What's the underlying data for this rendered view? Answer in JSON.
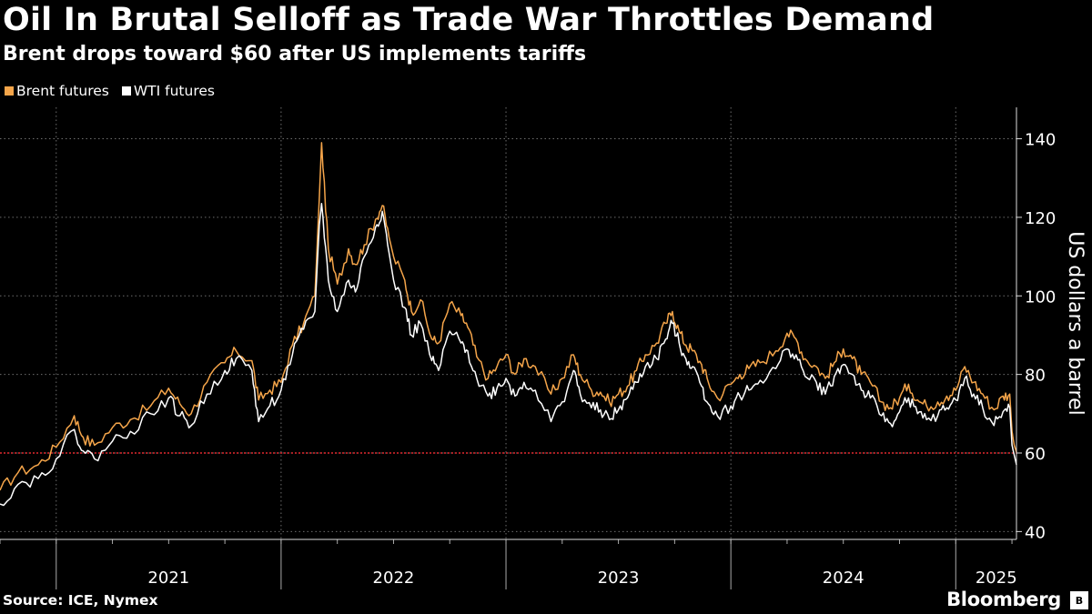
{
  "header": {
    "title": "Oil In Brutal Selloff as Trade War Throttles Demand",
    "subtitle": "Brent drops toward $60 after US implements tariffs"
  },
  "colors": {
    "brent": "#f5a54a",
    "wti": "#ffffff",
    "reference_line": "#e0282e",
    "grid": "#6e6e6e",
    "background": "#000000"
  },
  "chart_data": {
    "type": "line",
    "title": "Oil In Brutal Selloff as Trade War Throttles Demand",
    "subtitle": "Brent drops toward $60 after US implements tariffs",
    "ylabel": "US dollars a barrel",
    "xlabel": "",
    "ylim": [
      38,
      148
    ],
    "yticks": [
      40,
      60,
      80,
      100,
      120,
      140
    ],
    "xlim": [
      2020.75,
      2025.27
    ],
    "x_labels": [
      {
        "label": "2021",
        "pos": 2021.5
      },
      {
        "label": "2022",
        "pos": 2022.5
      },
      {
        "label": "2023",
        "pos": 2023.5
      },
      {
        "label": "2024",
        "pos": 2024.5
      },
      {
        "label": "2025",
        "pos": 2025.18
      }
    ],
    "year_dividers": [
      2021.0,
      2022.0,
      2023.0,
      2024.0,
      2025.0
    ],
    "reference_line": {
      "value": 60,
      "label": "$60"
    },
    "legend": [
      "Brent futures",
      "WTI futures"
    ],
    "legend_position": "top-left",
    "series": [
      {
        "name": "Brent futures",
        "points": [
          [
            2020.75,
            50.5
          ],
          [
            2020.83,
            55.0
          ],
          [
            2020.92,
            57.0
          ],
          [
            2021.0,
            61.5
          ],
          [
            2021.08,
            69.5
          ],
          [
            2021.12,
            64.0
          ],
          [
            2021.17,
            62.0
          ],
          [
            2021.25,
            66.5
          ],
          [
            2021.33,
            68.5
          ],
          [
            2021.42,
            72.0
          ],
          [
            2021.5,
            76.5
          ],
          [
            2021.55,
            72.5
          ],
          [
            2021.6,
            70.0
          ],
          [
            2021.67,
            78.0
          ],
          [
            2021.75,
            83.0
          ],
          [
            2021.8,
            86.0
          ],
          [
            2021.87,
            83.5
          ],
          [
            2021.9,
            73.5
          ],
          [
            2021.95,
            76.0
          ],
          [
            2022.0,
            78.0
          ],
          [
            2022.05,
            87.5
          ],
          [
            2022.1,
            93.0
          ],
          [
            2022.15,
            100.0
          ],
          [
            2022.17,
            125.0
          ],
          [
            2022.18,
            139.0
          ],
          [
            2022.21,
            112.0
          ],
          [
            2022.25,
            103.0
          ],
          [
            2022.3,
            112.0
          ],
          [
            2022.33,
            108.0
          ],
          [
            2022.37,
            113.0
          ],
          [
            2022.42,
            119.5
          ],
          [
            2022.45,
            123.0
          ],
          [
            2022.48,
            115.0
          ],
          [
            2022.5,
            110.0
          ],
          [
            2022.55,
            104.0
          ],
          [
            2022.58,
            96.0
          ],
          [
            2022.62,
            99.0
          ],
          [
            2022.67,
            89.0
          ],
          [
            2022.7,
            88.0
          ],
          [
            2022.75,
            98.0
          ],
          [
            2022.8,
            95.0
          ],
          [
            2022.83,
            92.0
          ],
          [
            2022.87,
            84.5
          ],
          [
            2022.92,
            79.0
          ],
          [
            2022.96,
            82.0
          ],
          [
            2023.0,
            85.0
          ],
          [
            2023.04,
            80.0
          ],
          [
            2023.08,
            84.0
          ],
          [
            2023.13,
            82.0
          ],
          [
            2023.2,
            75.0
          ],
          [
            2023.25,
            79.0
          ],
          [
            2023.3,
            85.0
          ],
          [
            2023.33,
            80.0
          ],
          [
            2023.38,
            76.0
          ],
          [
            2023.42,
            75.5
          ],
          [
            2023.46,
            73.0
          ],
          [
            2023.5,
            75.0
          ],
          [
            2023.54,
            77.0
          ],
          [
            2023.58,
            81.0
          ],
          [
            2023.62,
            85.0
          ],
          [
            2023.67,
            88.0
          ],
          [
            2023.71,
            93.0
          ],
          [
            2023.74,
            96.0
          ],
          [
            2023.77,
            91.0
          ],
          [
            2023.8,
            87.5
          ],
          [
            2023.83,
            86.0
          ],
          [
            2023.87,
            82.5
          ],
          [
            2023.9,
            78.0
          ],
          [
            2023.94,
            74.0
          ],
          [
            2024.0,
            77.5
          ],
          [
            2024.04,
            80.0
          ],
          [
            2024.08,
            81.5
          ],
          [
            2024.13,
            83.0
          ],
          [
            2024.2,
            86.0
          ],
          [
            2024.25,
            90.5
          ],
          [
            2024.29,
            89.0
          ],
          [
            2024.33,
            84.0
          ],
          [
            2024.38,
            82.0
          ],
          [
            2024.42,
            79.0
          ],
          [
            2024.46,
            83.0
          ],
          [
            2024.5,
            86.5
          ],
          [
            2024.54,
            84.0
          ],
          [
            2024.58,
            80.0
          ],
          [
            2024.62,
            78.0
          ],
          [
            2024.67,
            73.0
          ],
          [
            2024.71,
            71.5
          ],
          [
            2024.75,
            74.0
          ],
          [
            2024.79,
            77.5
          ],
          [
            2024.83,
            73.5
          ],
          [
            2024.87,
            72.0
          ],
          [
            2024.92,
            73.0
          ],
          [
            2024.96,
            74.5
          ],
          [
            2025.0,
            76.0
          ],
          [
            2025.04,
            82.0
          ],
          [
            2025.08,
            78.0
          ],
          [
            2025.12,
            75.0
          ],
          [
            2025.17,
            71.0
          ],
          [
            2025.21,
            74.5
          ],
          [
            2025.24,
            75.0
          ],
          [
            2025.25,
            65.5
          ],
          [
            2025.26,
            62.0
          ],
          [
            2025.27,
            60.2
          ]
        ]
      },
      {
        "name": "WTI futures",
        "points": [
          [
            2020.75,
            47.0
          ],
          [
            2020.83,
            52.0
          ],
          [
            2020.92,
            53.5
          ],
          [
            2021.0,
            58.5
          ],
          [
            2021.08,
            66.0
          ],
          [
            2021.12,
            60.5
          ],
          [
            2021.17,
            58.5
          ],
          [
            2021.25,
            63.0
          ],
          [
            2021.33,
            65.5
          ],
          [
            2021.42,
            70.0
          ],
          [
            2021.5,
            74.0
          ],
          [
            2021.55,
            69.5
          ],
          [
            2021.6,
            67.0
          ],
          [
            2021.67,
            75.0
          ],
          [
            2021.75,
            81.0
          ],
          [
            2021.8,
            84.0
          ],
          [
            2021.87,
            81.0
          ],
          [
            2021.9,
            68.0
          ],
          [
            2021.95,
            72.0
          ],
          [
            2022.0,
            76.0
          ],
          [
            2022.05,
            85.0
          ],
          [
            2022.1,
            91.5
          ],
          [
            2022.15,
            96.0
          ],
          [
            2022.17,
            118.0
          ],
          [
            2022.18,
            123.5
          ],
          [
            2022.21,
            104.0
          ],
          [
            2022.25,
            96.0
          ],
          [
            2022.3,
            104.0
          ],
          [
            2022.33,
            101.0
          ],
          [
            2022.37,
            110.0
          ],
          [
            2022.42,
            117.5
          ],
          [
            2022.45,
            121.5
          ],
          [
            2022.48,
            111.0
          ],
          [
            2022.5,
            104.0
          ],
          [
            2022.55,
            97.0
          ],
          [
            2022.58,
            90.0
          ],
          [
            2022.62,
            93.0
          ],
          [
            2022.67,
            83.5
          ],
          [
            2022.7,
            81.0
          ],
          [
            2022.75,
            91.0
          ],
          [
            2022.8,
            88.0
          ],
          [
            2022.83,
            86.0
          ],
          [
            2022.87,
            79.0
          ],
          [
            2022.92,
            74.5
          ],
          [
            2022.96,
            76.5
          ],
          [
            2023.0,
            79.0
          ],
          [
            2023.04,
            74.5
          ],
          [
            2023.08,
            78.0
          ],
          [
            2023.13,
            76.0
          ],
          [
            2023.2,
            68.0
          ],
          [
            2023.25,
            73.0
          ],
          [
            2023.3,
            81.0
          ],
          [
            2023.33,
            75.0
          ],
          [
            2023.38,
            71.5
          ],
          [
            2023.42,
            71.0
          ],
          [
            2023.46,
            68.5
          ],
          [
            2023.5,
            71.0
          ],
          [
            2023.54,
            74.0
          ],
          [
            2023.58,
            78.0
          ],
          [
            2023.62,
            82.0
          ],
          [
            2023.67,
            84.0
          ],
          [
            2023.71,
            89.0
          ],
          [
            2023.74,
            93.0
          ],
          [
            2023.77,
            88.0
          ],
          [
            2023.8,
            84.0
          ],
          [
            2023.83,
            82.0
          ],
          [
            2023.87,
            77.0
          ],
          [
            2023.9,
            72.5
          ],
          [
            2023.94,
            69.5
          ],
          [
            2024.0,
            72.0
          ],
          [
            2024.04,
            74.5
          ],
          [
            2024.08,
            76.0
          ],
          [
            2024.13,
            78.5
          ],
          [
            2024.2,
            81.5
          ],
          [
            2024.25,
            86.5
          ],
          [
            2024.29,
            85.0
          ],
          [
            2024.33,
            79.5
          ],
          [
            2024.38,
            78.0
          ],
          [
            2024.42,
            75.0
          ],
          [
            2024.46,
            79.5
          ],
          [
            2024.5,
            82.5
          ],
          [
            2024.54,
            80.0
          ],
          [
            2024.58,
            76.0
          ],
          [
            2024.62,
            74.0
          ],
          [
            2024.67,
            69.5
          ],
          [
            2024.71,
            67.5
          ],
          [
            2024.75,
            70.5
          ],
          [
            2024.79,
            74.0
          ],
          [
            2024.83,
            70.0
          ],
          [
            2024.87,
            68.5
          ],
          [
            2024.92,
            69.5
          ],
          [
            2024.96,
            71.5
          ],
          [
            2025.0,
            73.5
          ],
          [
            2025.04,
            79.0
          ],
          [
            2025.08,
            75.0
          ],
          [
            2025.12,
            71.5
          ],
          [
            2025.17,
            67.0
          ],
          [
            2025.21,
            70.5
          ],
          [
            2025.24,
            71.5
          ],
          [
            2025.25,
            62.0
          ],
          [
            2025.26,
            59.5
          ],
          [
            2025.27,
            57.0
          ]
        ]
      }
    ]
  },
  "legend": {
    "items": [
      {
        "label": "Brent futures",
        "color": "#f5a54a"
      },
      {
        "label": "WTI futures",
        "color": "#ffffff"
      }
    ]
  },
  "footer": {
    "source": "Source: ICE, Nymex",
    "brand": "Bloomberg",
    "badge": "B"
  }
}
